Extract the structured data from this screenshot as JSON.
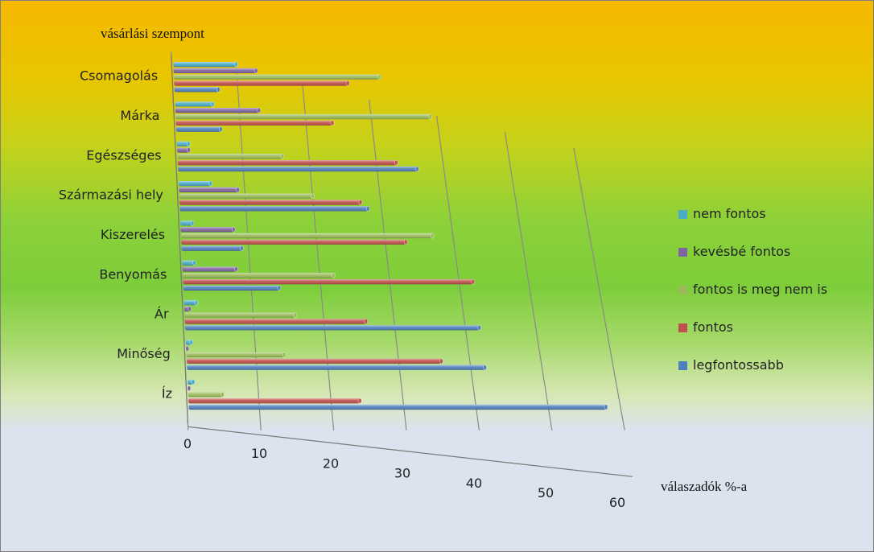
{
  "chart_data": {
    "type": "bar",
    "orientation": "horizontal",
    "style": "3d-perspective",
    "ylabel": "vásárlási szempont",
    "xlabel": "válaszadók %-a",
    "xlim": [
      0,
      60
    ],
    "xticks": [
      0,
      10,
      20,
      30,
      40,
      50,
      60
    ],
    "grid": true,
    "legend": "right",
    "categories": [
      "Csomagolás",
      "Márka",
      "Egészséges",
      "Származási hely",
      "Kiszerelés",
      "Benyomás",
      "Ár",
      "Minőség",
      "Íz"
    ],
    "series": [
      {
        "name": "nem fontos",
        "color": "#4bacc6",
        "values": [
          10,
          6,
          2,
          5,
          2,
          2,
          2,
          1,
          1
        ]
      },
      {
        "name": "kevésbé fontos",
        "color": "#8064a2",
        "values": [
          13,
          13,
          2,
          9,
          8,
          8,
          1,
          0,
          0
        ]
      },
      {
        "name": "fontos is meg nem is",
        "color": "#9bbb59",
        "values": [
          32,
          39,
          16,
          20,
          37,
          22,
          16,
          14,
          5
        ]
      },
      {
        "name": "fontos",
        "color": "#c0504d",
        "values": [
          27,
          24,
          33,
          27,
          33,
          42,
          26,
          36,
          24
        ]
      },
      {
        "name": "legfontossabb",
        "color": "#4f81bd",
        "values": [
          7,
          7,
          36,
          28,
          9,
          14,
          42,
          42,
          58
        ]
      }
    ]
  }
}
